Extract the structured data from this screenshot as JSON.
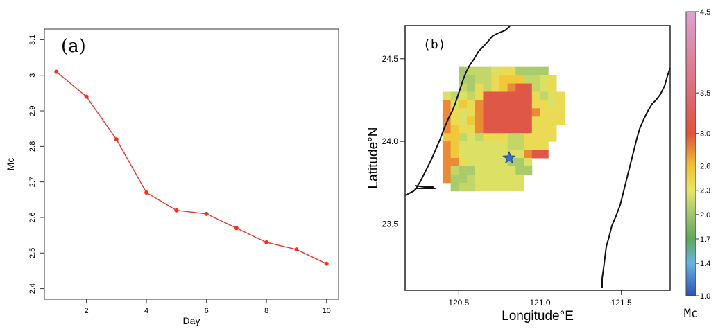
{
  "chart_data": [
    {
      "type": "line",
      "panel_label": "(a)",
      "xlabel": "Day",
      "ylabel": "Mc",
      "xlim": [
        0.6,
        10.4
      ],
      "ylim": [
        2.37,
        3.13
      ],
      "xticks": [
        2,
        4,
        6,
        8,
        10
      ],
      "yticks": [
        2.4,
        2.5,
        2.6,
        2.7,
        2.8,
        2.9,
        3.0,
        3.1
      ],
      "ytick_labels": [
        "2.4",
        "2.5",
        "2.6",
        "2.7",
        "2.8",
        "2.9",
        "3",
        "3.1"
      ],
      "x": [
        1,
        2,
        3,
        4,
        5,
        6,
        7,
        8,
        9,
        10
      ],
      "y": [
        3.01,
        2.94,
        2.82,
        2.67,
        2.62,
        2.61,
        2.57,
        2.53,
        2.51,
        2.47
      ],
      "color": "#ee3322",
      "grid": false
    },
    {
      "type": "heatmap",
      "panel_label": "(b)",
      "xlabel": "Longitude°E",
      "ylabel": "Latitude°N",
      "colorbar_label": "Mc",
      "xlim": [
        120.17,
        121.8
      ],
      "ylim": [
        23.1,
        24.7
      ],
      "xticks": [
        120.5,
        121.0,
        121.5
      ],
      "xtick_labels": [
        "120.5",
        "121.0",
        "121.5"
      ],
      "yticks": [
        23.5,
        24.0,
        24.5
      ],
      "ytick_labels": [
        "23.5",
        "24.0",
        "24.5"
      ],
      "grid_origin": [
        120.35,
        24.45
      ],
      "cell_size": 0.05,
      "epicenter": {
        "lon": 120.81,
        "lat": 23.9
      },
      "colorbar": {
        "min": 1.0,
        "max": 4.5,
        "ticks": [
          1.0,
          1.4,
          1.7,
          2.0,
          2.3,
          2.6,
          3.0,
          3.5,
          4.5
        ],
        "tick_labels": [
          "1.0",
          "1.4",
          "1.7",
          "2.0",
          "2.3",
          "2.6",
          "3.0",
          "3.5",
          "4.5"
        ],
        "stops": [
          {
            "value": 1.0,
            "color": "#2f4fb5"
          },
          {
            "value": 1.4,
            "color": "#62b4e3"
          },
          {
            "value": 1.7,
            "color": "#5fa85a"
          },
          {
            "value": 2.0,
            "color": "#9ec66c"
          },
          {
            "value": 2.3,
            "color": "#e8e664"
          },
          {
            "value": 2.6,
            "color": "#f1c232"
          },
          {
            "value": 3.0,
            "color": "#e0523a"
          },
          {
            "value": 3.5,
            "color": "#dd6b78"
          },
          {
            "value": 4.5,
            "color": "#dca3cf"
          }
        ]
      },
      "rows": [
        "...GHHHIJJGGGG..",
        "...GGHHJKKKHHIJ.",
        "...HGJHJKMNNHIJ.",
        ".IHIHJNNNNNNJHIJ",
        ".MIKJMNNNNNNJJIJ",
        ".MJIJMNNNNNNMJJJ",
        ".MJIKMNNNNNNJJJJ",
        ".MKJJMNNNNNNJJJ.",
        ".KKHIHJJJHHJJJJ.",
        ".MKIIIIIIHHJJJ..",
        ".MKIIIIIIIIMNN..",
        ".MMJIIIIIGGI....",
        ".MHGGIIIIIGG....",
        ".MGGHIIIIII.....",
        "..GHHIIIIII....."
      ],
      "cell_legend": {
        "G": 2.05,
        "H": 2.15,
        "I": 2.25,
        "J": 2.4,
        "K": 2.55,
        "M": 2.8,
        "N": 3.1
      }
    }
  ]
}
